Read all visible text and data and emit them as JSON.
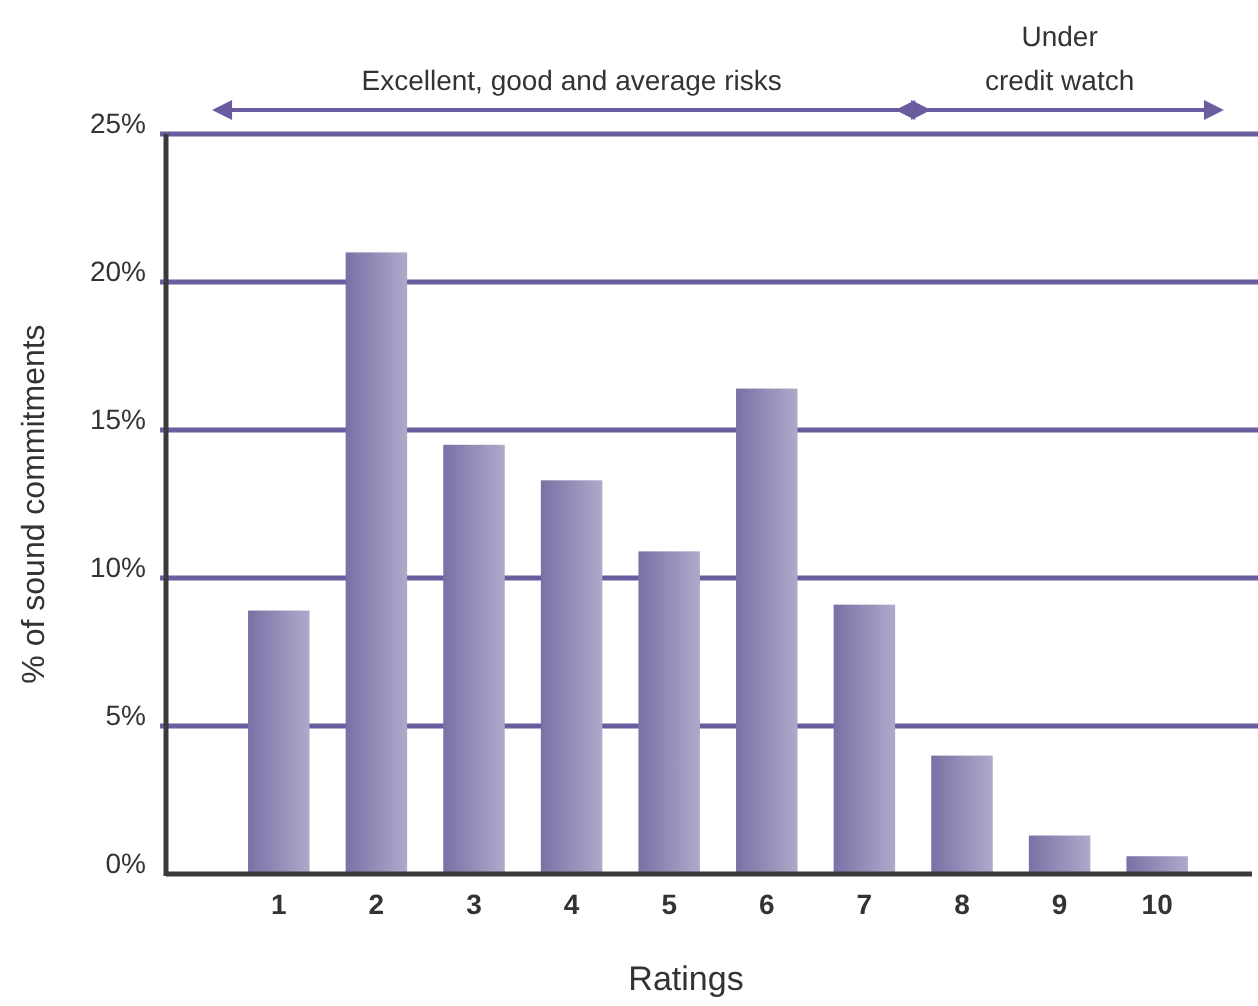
{
  "chart_data": {
    "type": "bar",
    "xlabel": "Ratings",
    "ylabel": "% of sound commitments",
    "categories": [
      "1",
      "2",
      "3",
      "4",
      "5",
      "6",
      "7",
      "8",
      "9",
      "10"
    ],
    "values": [
      8.9,
      21.0,
      14.5,
      13.3,
      10.9,
      16.4,
      9.1,
      4.0,
      1.3,
      0.6
    ],
    "color": "#7b70a6",
    "ylim": [
      0,
      25
    ],
    "yticks": [
      {
        "value": 0,
        "label": "0%"
      },
      {
        "value": 5,
        "label": "5%"
      },
      {
        "value": 10,
        "label": "10%"
      },
      {
        "value": 15,
        "label": "15%"
      },
      {
        "value": 20,
        "label": "20%"
      },
      {
        "value": 25,
        "label": "25%"
      }
    ],
    "grid": "y",
    "annotations": [
      "Excellent, good and average risks",
      "Under\ncredit watch"
    ]
  }
}
